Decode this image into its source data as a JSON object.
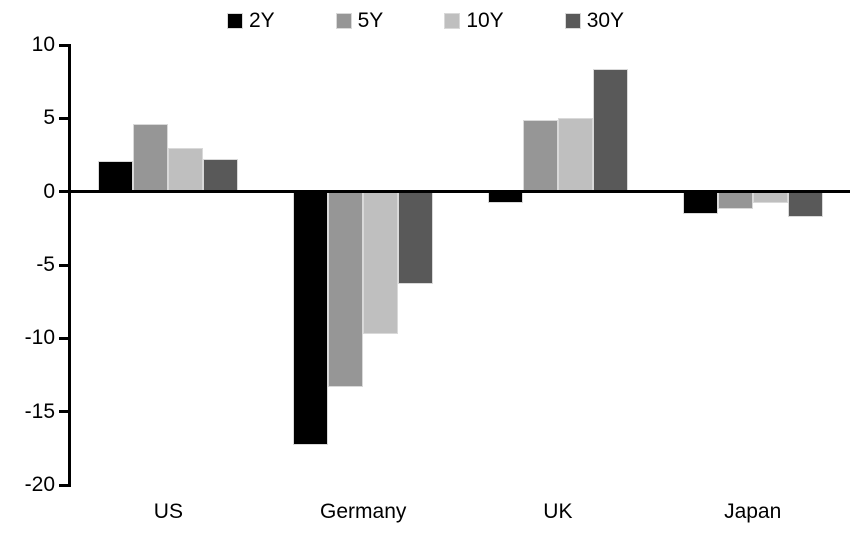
{
  "chart_data": {
    "type": "bar",
    "title": "",
    "categories": [
      "US",
      "Germany",
      "UK",
      "Japan"
    ],
    "series": [
      {
        "name": "2Y",
        "color": "#000000",
        "values": [
          2.1,
          -17.3,
          -0.8,
          -1.5
        ]
      },
      {
        "name": "5Y",
        "color": "#969696",
        "values": [
          4.6,
          -13.3,
          4.9,
          -1.2
        ]
      },
      {
        "name": "10Y",
        "color": "#BFBFBF",
        "values": [
          3.0,
          -9.7,
          5.0,
          -0.8
        ]
      },
      {
        "name": "30Y",
        "color": "#595959",
        "values": [
          2.2,
          -6.3,
          8.4,
          -1.7
        ]
      }
    ],
    "ylim": [
      -20,
      10
    ],
    "yticks": [
      10,
      5,
      0,
      -5,
      -10,
      -15,
      -20
    ],
    "xlabel": "",
    "ylabel": "",
    "grid": false,
    "legend_position": "top",
    "axis_color": "#000000",
    "bar_outline_color": "#d9d9d9",
    "background_color": "#ffffff"
  }
}
